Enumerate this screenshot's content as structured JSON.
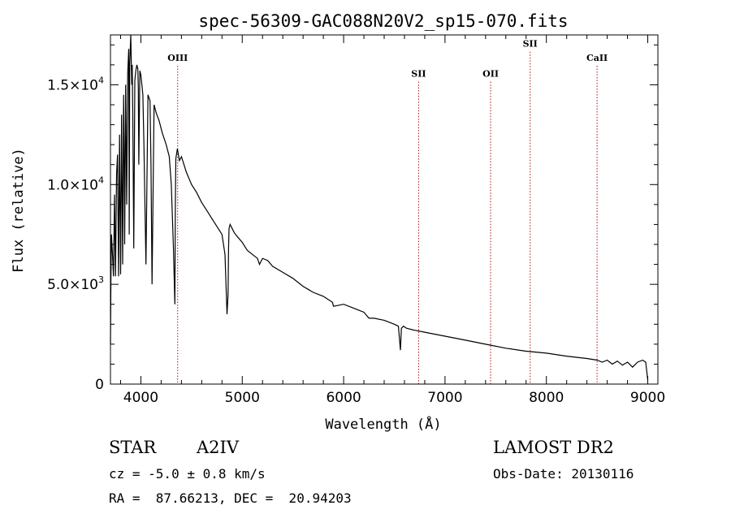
{
  "chart_data": {
    "type": "line",
    "title": "spec-56309-GAC088N20V2_sp15-070.fits",
    "xlabel": "Wavelength (Å)",
    "ylabel": "Flux (relative)",
    "xlim": [
      3700,
      9100
    ],
    "ylim": [
      0,
      17500
    ],
    "x_ticks": [
      4000,
      5000,
      6000,
      7000,
      8000,
      9000
    ],
    "y_ticks": [
      {
        "value": 0,
        "mantissa": "0",
        "exp": ""
      },
      {
        "value": 5000,
        "mantissa": "5.0×10",
        "exp": "3"
      },
      {
        "value": 10000,
        "mantissa": "1.0×10",
        "exp": "4"
      },
      {
        "value": 15000,
        "mantissa": "1.5×10",
        "exp": "4"
      }
    ],
    "lines": [
      {
        "name": "OIII",
        "x": 4363,
        "label_y": 16200
      },
      {
        "name": "SII",
        "x": 6740,
        "label_y": 15400
      },
      {
        "name": "OII",
        "x": 7450,
        "label_y": 15400
      },
      {
        "name": "SII",
        "x": 7840,
        "label_y": 16900
      },
      {
        "name": "CaII",
        "x": 8500,
        "label_y": 16200
      }
    ],
    "series": [
      {
        "x": [
          3700,
          3705,
          3710,
          3720,
          3730,
          3740,
          3750,
          3760,
          3770,
          3780,
          3790,
          3800,
          3810,
          3820,
          3830,
          3835,
          3840,
          3850,
          3860,
          3870,
          3880,
          3885,
          3890,
          3900,
          3910,
          3915,
          3920,
          3930,
          3940,
          3950,
          3960,
          3970,
          3975,
          3980,
          3990,
          4000,
          4010,
          4020,
          4030,
          4050,
          4070,
          4090,
          4100,
          4110,
          4130,
          4150,
          4180,
          4210,
          4250,
          4280,
          4300,
          4320,
          4335,
          4340,
          4345,
          4360,
          4380,
          4400,
          4450,
          4500,
          4550,
          4600,
          4650,
          4700,
          4750,
          4800,
          4830,
          4850,
          4860,
          4865,
          4870,
          4880,
          4900,
          4920,
          4950,
          5000,
          5050,
          5100,
          5150,
          5170,
          5200,
          5250,
          5300,
          5400,
          5500,
          5600,
          5700,
          5800,
          5890,
          5900,
          6000,
          6100,
          6200,
          6250,
          6300,
          6400,
          6500,
          6540,
          6560,
          6570,
          6590,
          6620,
          6700,
          6800,
          7000,
          7200,
          7400,
          7600,
          7800,
          8000,
          8200,
          8400,
          8500,
          8550,
          8600,
          8650,
          8700,
          8750,
          8800,
          8850,
          8900,
          8950,
          8980,
          9000
        ],
        "y": [
          2000,
          5400,
          7500,
          6500,
          5400,
          9500,
          5400,
          10500,
          11500,
          5400,
          12500,
          5500,
          13500,
          6000,
          14500,
          12000,
          7000,
          15000,
          9000,
          15500,
          16800,
          7500,
          16000,
          17500,
          15000,
          16000,
          13500,
          6800,
          15200,
          15700,
          16000,
          15800,
          14800,
          11000,
          15700,
          15500,
          15000,
          14500,
          12000,
          6000,
          14500,
          14200,
          11000,
          5000,
          14000,
          13600,
          13200,
          12600,
          12000,
          11400,
          10000,
          7000,
          4000,
          9000,
          11300,
          11800,
          11200,
          11400,
          10600,
          10000,
          9600,
          9100,
          8700,
          8300,
          7900,
          7500,
          6500,
          3500,
          4500,
          6800,
          7800,
          8000,
          7800,
          7600,
          7400,
          7100,
          6700,
          6500,
          6300,
          6000,
          6300,
          6200,
          5900,
          5600,
          5300,
          4900,
          4600,
          4400,
          4100,
          3900,
          4000,
          3800,
          3600,
          3300,
          3300,
          3200,
          3000,
          2900,
          1700,
          2800,
          2900,
          2800,
          2700,
          2600,
          2400,
          2200,
          2000,
          1800,
          1650,
          1550,
          1400,
          1280,
          1200,
          1100,
          1200,
          1000,
          1150,
          950,
          1100,
          850,
          1100,
          1200,
          1100,
          200
        ]
      }
    ],
    "grid": false,
    "line_color": "#000000",
    "marker_line_color": "#aa1111"
  },
  "footer": {
    "object_type": "STAR",
    "subclass": "A2IV",
    "survey": "LAMOST DR2",
    "redshift": "cz = -5.0 ± 0.8 km/s",
    "obs_date": "Obs-Date: 20130116",
    "coords": "RA =  87.66213, DEC =  20.94203"
  }
}
